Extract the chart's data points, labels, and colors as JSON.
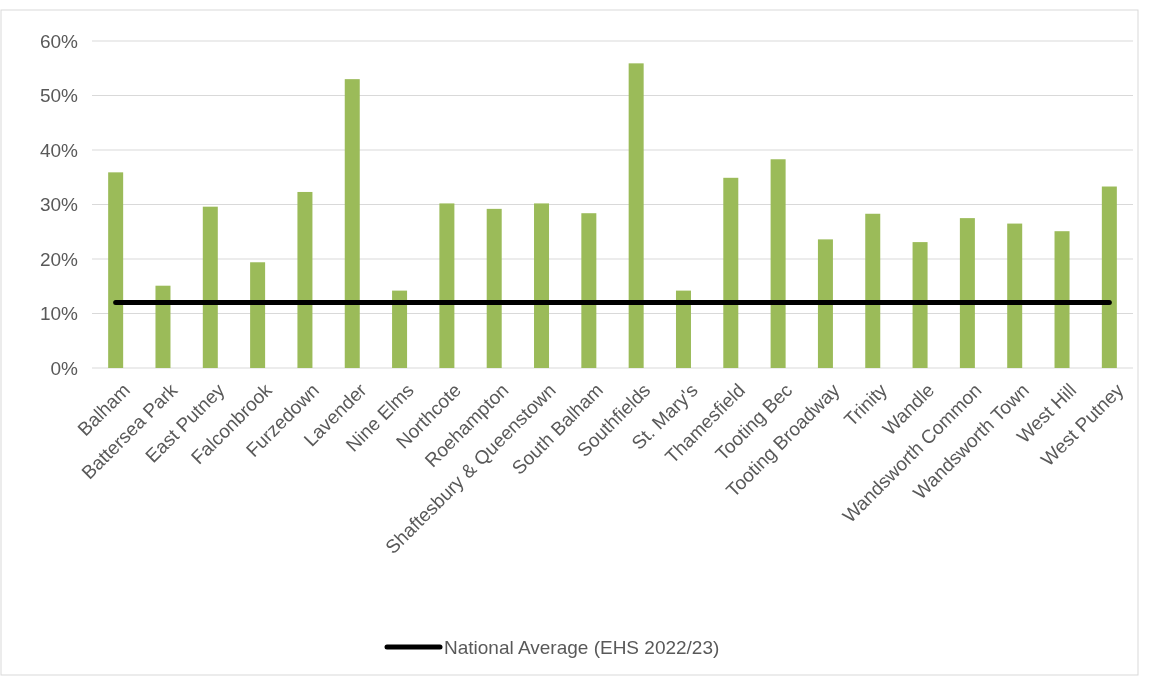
{
  "chart_data": {
    "type": "bar",
    "categories": [
      "Balham",
      "Battersea Park",
      "East Putney",
      "Falconbrook",
      "Furzedown",
      "Lavender",
      "Nine Elms",
      "Northcote",
      "Roehampton",
      "Shaftesbury & Queenstown",
      "South Balham",
      "Southfields",
      "St. Mary's",
      "Thamesfield",
      "Tooting Bec",
      "Tooting Broadway",
      "Trinity",
      "Wandle",
      "Wandsworth Common",
      "Wandsworth Town",
      "West Hill",
      "West Putney"
    ],
    "series": [
      {
        "color": "#9bbb59",
        "values": [
          35.9,
          15.1,
          29.6,
          19.4,
          32.3,
          53.0,
          14.2,
          30.2,
          29.2,
          30.2,
          28.4,
          55.9,
          14.2,
          34.9,
          38.3,
          23.6,
          28.3,
          23.1,
          27.5,
          26.5,
          25.1,
          33.3
        ]
      },
      {
        "type": "line",
        "name": "National Average (EHS 2022/23)",
        "color": "#000000",
        "values": [
          12,
          12,
          12,
          12,
          12,
          12,
          12,
          12,
          12,
          12,
          12,
          12,
          12,
          12,
          12,
          12,
          12,
          12,
          12,
          12,
          12,
          12
        ]
      }
    ],
    "ylim": [
      0,
      60
    ],
    "yticks": [
      {
        "value": 0,
        "label": "0%"
      },
      {
        "value": 10,
        "label": "10%"
      },
      {
        "value": 20,
        "label": "20%"
      },
      {
        "value": 30,
        "label": "30%"
      },
      {
        "value": 40,
        "label": "40%"
      },
      {
        "value": 50,
        "label": "50%"
      },
      {
        "value": 60,
        "label": "60%"
      }
    ],
    "grid": "y",
    "legend": "bottom",
    "marker": "none",
    "line_style": "solid"
  }
}
